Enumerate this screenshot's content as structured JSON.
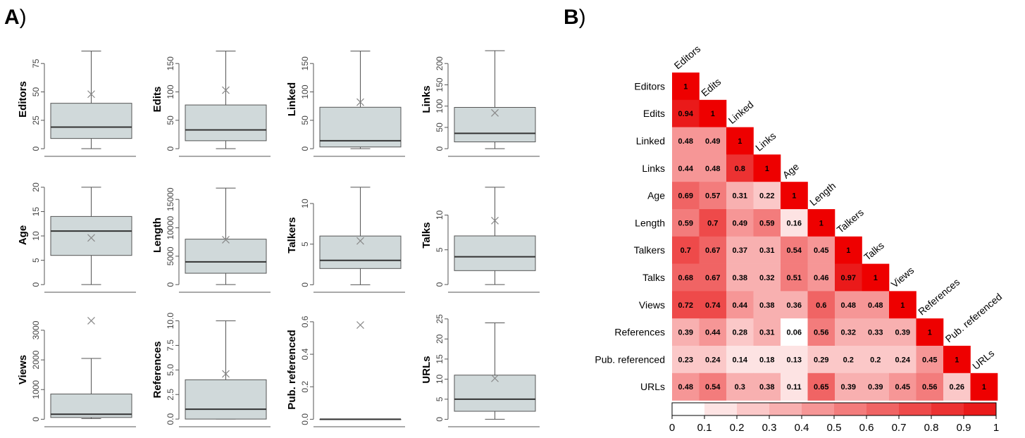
{
  "panel_labels": {
    "a": "A",
    "b": "B",
    "paren": ")"
  },
  "chart_data": [
    {
      "type": "box",
      "panel": "A",
      "plots": [
        {
          "ylabel": "Editors",
          "ylim": [
            -3,
            90
          ],
          "ticks": [
            "0",
            "25",
            "50",
            "75"
          ],
          "tick_values": [
            0,
            25,
            50,
            75
          ],
          "min": 0,
          "q1": 9,
          "median": 19,
          "q3": 40,
          "max": 86,
          "mean": 48
        },
        {
          "ylabel": "Edits",
          "ylim": [
            -6,
            180
          ],
          "ticks": [
            "0",
            "50",
            "100",
            "150"
          ],
          "tick_values": [
            0,
            50,
            100,
            150
          ],
          "min": 0,
          "q1": 14,
          "median": 33,
          "q3": 77,
          "max": 172,
          "mean": 103
        },
        {
          "ylabel": "Linked",
          "ylim": [
            -6,
            180
          ],
          "ticks": [
            "0",
            "50",
            "100",
            "150"
          ],
          "tick_values": [
            0,
            50,
            100,
            150
          ],
          "min": 0,
          "q1": 3,
          "median": 14,
          "q3": 73,
          "max": 172,
          "mean": 82
        },
        {
          "ylabel": "Links",
          "ylim": [
            -8,
            240
          ],
          "ticks": [
            "0",
            "50",
            "100",
            "150",
            "200"
          ],
          "tick_values": [
            0,
            50,
            100,
            150,
            200
          ],
          "min": 0,
          "q1": 16,
          "median": 36,
          "q3": 97,
          "max": 230,
          "mean": 84
        },
        {
          "ylabel": "Age",
          "ylim": [
            -0.7,
            21
          ],
          "ticks": [
            "0",
            "5",
            "10",
            "15",
            "20"
          ],
          "tick_values": [
            0,
            5,
            10,
            15,
            20
          ],
          "min": 0,
          "q1": 6,
          "median": 11,
          "q3": 14,
          "max": 20,
          "mean": 9.6
        },
        {
          "ylabel": "Length",
          "ylim": [
            -600,
            18000
          ],
          "ticks": [
            "0",
            "5000",
            "10000",
            "15000"
          ],
          "tick_values": [
            0,
            5000,
            10000,
            15000
          ],
          "min": 0,
          "q1": 2000,
          "median": 4000,
          "q3": 8000,
          "max": 17000,
          "mean": 7900
        },
        {
          "ylabel": "Talkers",
          "ylim": [
            -0.4,
            12.6
          ],
          "ticks": [
            "0",
            "5",
            "10"
          ],
          "tick_values": [
            0,
            5,
            10
          ],
          "min": 0,
          "q1": 2,
          "median": 3,
          "q3": 6,
          "max": 12,
          "mean": 5.4
        },
        {
          "ylabel": "Talks",
          "ylim": [
            -0.5,
            14.7
          ],
          "ticks": [
            "0",
            "5",
            "10"
          ],
          "tick_values": [
            0,
            5,
            10
          ],
          "min": 0,
          "q1": 2,
          "median": 4,
          "q3": 7,
          "max": 14,
          "mean": 9.2
        },
        {
          "ylabel": "Views",
          "ylim": [
            -110,
            3450
          ],
          "ticks": [
            "0",
            "1000",
            "2000",
            "3000"
          ],
          "tick_values": [
            0,
            1000,
            2000,
            3000
          ],
          "min": 20,
          "q1": 60,
          "median": 170,
          "q3": 850,
          "max": 2050,
          "mean": 3320
        },
        {
          "ylabel": "References",
          "ylim": [
            -0.35,
            10.4
          ],
          "ticks": [
            "0.0",
            "2.5",
            "5.0",
            "7.5",
            "10.0"
          ],
          "tick_values": [
            0,
            2.5,
            5,
            7.5,
            10
          ],
          "min": 0,
          "q1": 0,
          "median": 1,
          "q3": 4,
          "max": 10,
          "mean": 4.6
        },
        {
          "ylabel": "Pub. referenced",
          "ylim": [
            -0.02,
            0.63
          ],
          "ticks": [
            "0.0",
            "0.2",
            "0.4",
            "0.6"
          ],
          "tick_values": [
            0,
            0.2,
            0.4,
            0.6
          ],
          "min": 0,
          "q1": 0,
          "median": 0,
          "q3": 0,
          "max": 0,
          "mean": 0.58
        },
        {
          "ylabel": "URLs",
          "ylim": [
            -0.8,
            25.5
          ],
          "ticks": [
            "0",
            "5",
            "10",
            "15",
            "20",
            "25"
          ],
          "tick_values": [
            0,
            5,
            10,
            15,
            20,
            25
          ],
          "min": 0,
          "q1": 2,
          "median": 5,
          "q3": 11,
          "max": 24,
          "mean": 10.2
        }
      ]
    },
    {
      "type": "heatmap",
      "panel": "B",
      "variables": [
        "Editors",
        "Edits",
        "Linked",
        "Links",
        "Age",
        "Length",
        "Talkers",
        "Talks",
        "Views",
        "References",
        "Pub. referenced",
        "URLs"
      ],
      "lower_triangle": [
        [
          "1"
        ],
        [
          "0.94",
          "1"
        ],
        [
          "0.48",
          "0.49",
          "1"
        ],
        [
          "0.44",
          "0.48",
          "0.8",
          "1"
        ],
        [
          "0.69",
          "0.57",
          "0.31",
          "0.22",
          "1"
        ],
        [
          "0.59",
          "0.7",
          "0.49",
          "0.59",
          "0.16",
          "1"
        ],
        [
          "0.7",
          "0.67",
          "0.37",
          "0.31",
          "0.54",
          "0.45",
          "1"
        ],
        [
          "0.68",
          "0.67",
          "0.38",
          "0.32",
          "0.51",
          "0.46",
          "0.97",
          "1"
        ],
        [
          "0.72",
          "0.74",
          "0.44",
          "0.38",
          "0.36",
          "0.6",
          "0.48",
          "0.48",
          "1"
        ],
        [
          "0.39",
          "0.44",
          "0.28",
          "0.31",
          "0.06",
          "0.56",
          "0.32",
          "0.33",
          "0.39",
          "1"
        ],
        [
          "0.23",
          "0.24",
          "0.14",
          "0.18",
          "0.13",
          "0.29",
          "0.2",
          "0.2",
          "0.24",
          "0.45",
          "1"
        ],
        [
          "0.48",
          "0.54",
          "0.3",
          "0.38",
          "0.11",
          "0.65",
          "0.39",
          "0.39",
          "0.45",
          "0.56",
          "0.26",
          "1"
        ]
      ],
      "colorbar": {
        "ticks": [
          "0",
          "0.1",
          "0.2",
          "0.3",
          "0.4",
          "0.5",
          "0.6",
          "0.7",
          "0.8",
          "0.9",
          "1"
        ],
        "low_color": "#ffffff",
        "high_color": "#ee0000"
      }
    }
  ],
  "colors": {
    "box_fill": "#d0d9da",
    "box_stroke": "#555555",
    "median_stroke": "#333333",
    "mean_marker": "#888888",
    "axis": "#555555",
    "cell_text": "#000000"
  }
}
